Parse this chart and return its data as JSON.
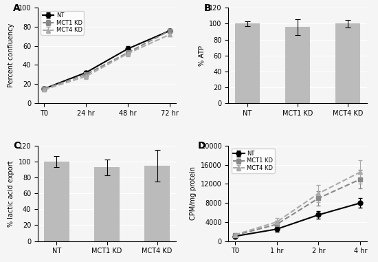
{
  "A": {
    "title": "A",
    "xlabel_ticks": [
      "T0",
      "24 hr",
      "48 hr",
      "72 hr"
    ],
    "ylabel": "Percent confluency",
    "ylim": [
      0,
      100
    ],
    "yticks": [
      0,
      20,
      40,
      60,
      80,
      100
    ],
    "series": {
      "NT": {
        "y": [
          15,
          32,
          57,
          76
        ],
        "yerr": [
          1.5,
          2,
          3,
          2
        ],
        "color": "black",
        "linestyle": "-",
        "marker": "o",
        "markersize": 5,
        "linewidth": 1.5,
        "label": "NT"
      },
      "MCT1 KD": {
        "y": [
          15,
          30,
          53,
          76
        ],
        "yerr": [
          2,
          3,
          3,
          2
        ],
        "color": "#888888",
        "linestyle": "--",
        "marker": "s",
        "markersize": 5,
        "linewidth": 1.5,
        "label": "MCT1 KD"
      },
      "MCT4 KD": {
        "y": [
          14,
          28,
          52,
          72
        ],
        "yerr": [
          2,
          3,
          3,
          2
        ],
        "color": "#aaaaaa",
        "linestyle": "--",
        "marker": "^",
        "markersize": 5,
        "linewidth": 1.5,
        "label": "MCT4 KD"
      }
    }
  },
  "B": {
    "title": "B",
    "categories": [
      "NT",
      "MCT1 KD",
      "MCT4 KD"
    ],
    "values": [
      100,
      96,
      100
    ],
    "yerr": [
      3,
      10,
      5
    ],
    "ylabel": "% ATP",
    "ylim": [
      0,
      120
    ],
    "yticks": [
      0,
      20,
      40,
      60,
      80,
      100,
      120
    ],
    "bar_color": "#bbbbbb",
    "bar_width": 0.5
  },
  "C": {
    "title": "C",
    "categories": [
      "NT",
      "MCT1 KD",
      "MCT4 KD"
    ],
    "values": [
      100,
      93,
      95
    ],
    "yerr": [
      7,
      10,
      20
    ],
    "ylabel": "% lactic acid export",
    "ylim": [
      0,
      120
    ],
    "yticks": [
      0,
      20,
      40,
      60,
      80,
      100,
      120
    ],
    "bar_color": "#bbbbbb",
    "bar_width": 0.5
  },
  "D": {
    "title": "D",
    "xlabel_ticks": [
      "T0",
      "1 hr",
      "2 hr",
      "4 hr"
    ],
    "ylabel": "CPM/mg protein",
    "ylim": [
      0,
      20000
    ],
    "yticks": [
      0,
      4000,
      8000,
      12000,
      16000,
      20000
    ],
    "series": {
      "NT": {
        "y": [
          1000,
          2500,
          5500,
          8000
        ],
        "yerr": [
          200,
          500,
          800,
          1000
        ],
        "color": "black",
        "linestyle": "-",
        "marker": "o",
        "markersize": 5,
        "linewidth": 1.5,
        "label": "NT"
      },
      "MCT1 KD": {
        "y": [
          1200,
          3500,
          9000,
          13000
        ],
        "yerr": [
          300,
          700,
          1500,
          2000
        ],
        "color": "#888888",
        "linestyle": "--",
        "marker": "s",
        "markersize": 5,
        "linewidth": 1.5,
        "label": "MCT1 KD"
      },
      "MCT4 KD": {
        "y": [
          1300,
          4000,
          10000,
          14500
        ],
        "yerr": [
          300,
          800,
          1800,
          2500
        ],
        "color": "#aaaaaa",
        "linestyle": "--",
        "marker": "^",
        "markersize": 5,
        "linewidth": 1.5,
        "label": "MCT4 KD"
      }
    }
  },
  "background_color": "#f5f5f5",
  "font_size": 7,
  "label_fontsize": 7,
  "tick_fontsize": 7,
  "panel_label_fontsize": 10
}
